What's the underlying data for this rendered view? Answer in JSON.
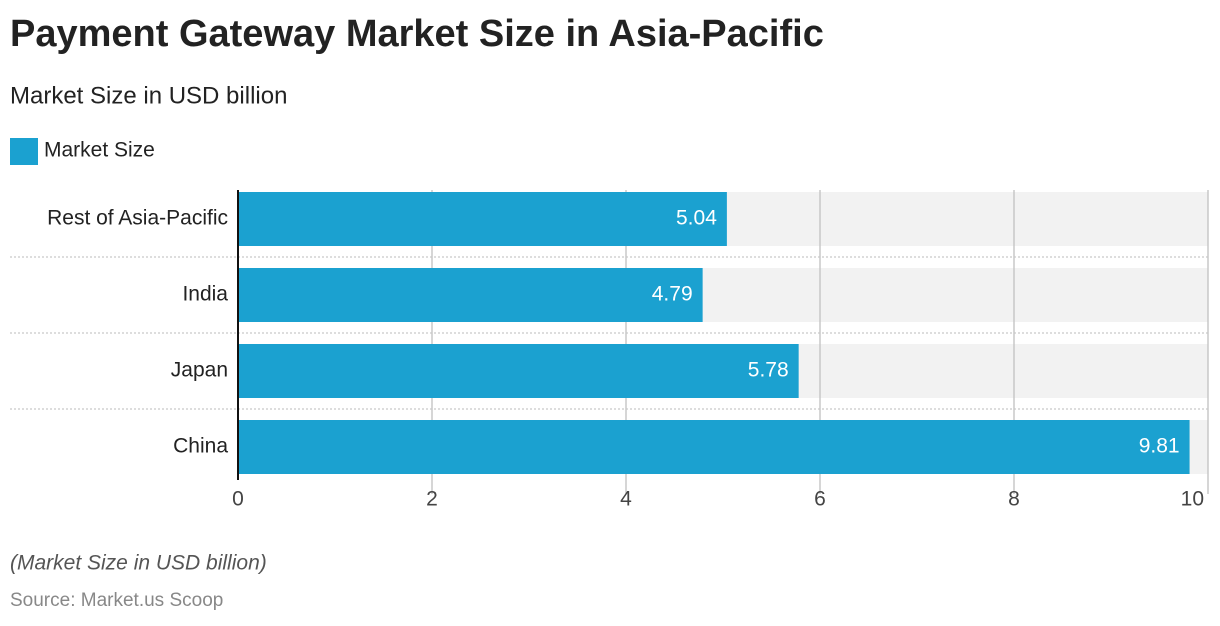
{
  "chart_data": {
    "type": "hbar",
    "title": "Payment Gateway Market Size in Asia-Pacific",
    "subtitle": "Market Size in USD billion",
    "categories": [
      "Rest of Asia-Pacific",
      "India",
      "Japan",
      "China"
    ],
    "series": [
      {
        "name": "Market Size",
        "color": "#1ba1d0",
        "values": [
          5.04,
          4.79,
          5.78,
          9.81
        ]
      }
    ],
    "xlim": [
      0,
      10
    ],
    "xticks": [
      0,
      2,
      4,
      6,
      8,
      10
    ],
    "grid": true,
    "note": "(Market Size in USD billion)",
    "source": "Source: Market.us Scoop"
  }
}
